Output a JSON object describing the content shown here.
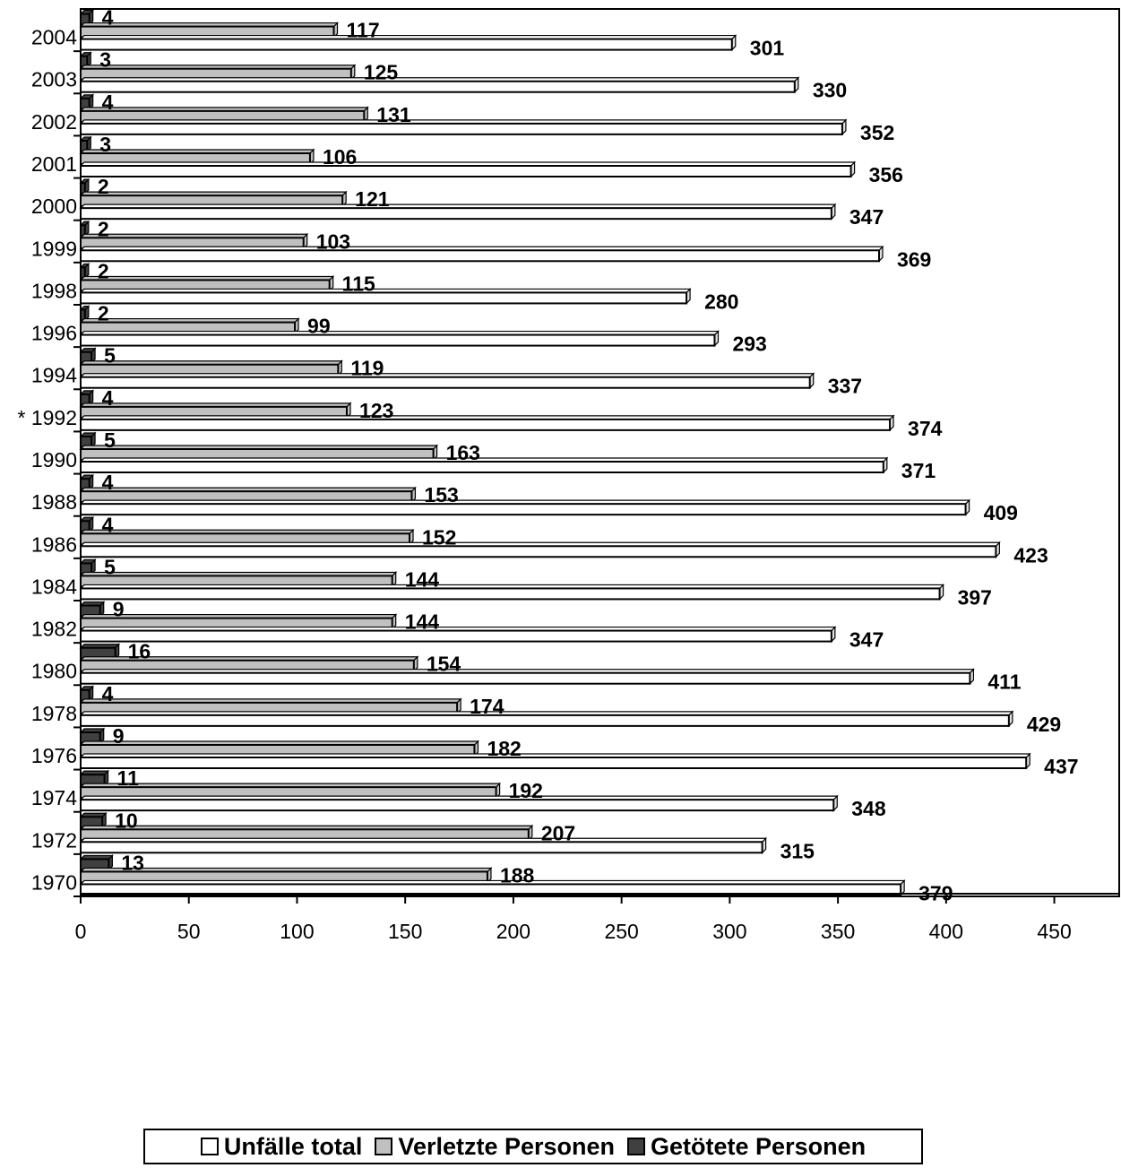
{
  "chart_data": {
    "type": "bar",
    "orientation": "horizontal",
    "categories": [
      "2004",
      "2003",
      "2002",
      "2001",
      "2000",
      "1999",
      "1998",
      "1996",
      "1994",
      "* 1992",
      "1990",
      "1988",
      "1986",
      "1984",
      "1982",
      "1980",
      "1978",
      "1976",
      "1974",
      "1972",
      "1970"
    ],
    "series": [
      {
        "name": "Getötete Personen",
        "color": "#404040",
        "values": [
          4,
          3,
          4,
          3,
          2,
          2,
          2,
          2,
          5,
          4,
          5,
          4,
          4,
          5,
          9,
          16,
          4,
          9,
          11,
          10,
          13
        ]
      },
      {
        "name": "Verletzte Personen",
        "color": "#c0c0c0",
        "values": [
          117,
          125,
          131,
          106,
          121,
          103,
          115,
          99,
          119,
          123,
          163,
          153,
          152,
          144,
          144,
          154,
          174,
          182,
          192,
          207,
          188
        ]
      },
      {
        "name": "Unfälle total",
        "color": "#ffffff",
        "values": [
          301,
          330,
          352,
          356,
          347,
          369,
          280,
          293,
          337,
          374,
          371,
          409,
          423,
          397,
          347,
          411,
          429,
          437,
          348,
          315,
          379
        ]
      }
    ],
    "x_ticks": [
      "0",
      "50",
      "100",
      "150",
      "200",
      "250",
      "300",
      "350",
      "400",
      "450"
    ],
    "xlim": [
      0,
      480
    ],
    "grid": false,
    "legend": {
      "position": "bottom",
      "entries": [
        {
          "label": "Unfälle total",
          "color": "#ffffff"
        },
        {
          "label": "Verletzte Personen",
          "color": "#c0c0c0"
        },
        {
          "label": "Getötete Personen",
          "color": "#404040"
        }
      ]
    }
  }
}
